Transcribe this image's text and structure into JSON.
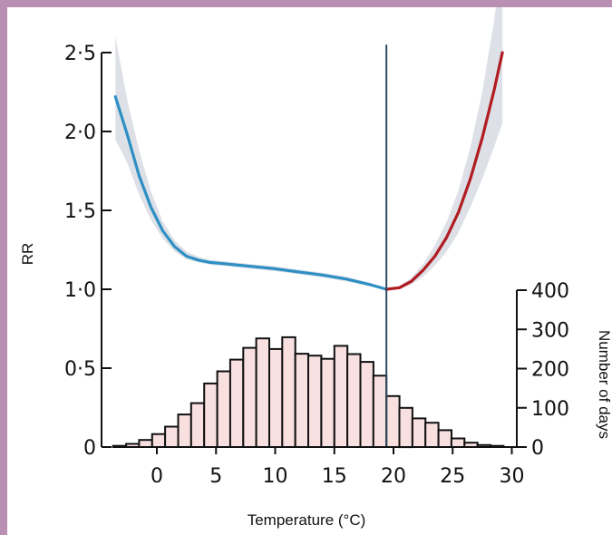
{
  "chart_data": {
    "type": "line",
    "xlabel": "Temperature (°C)",
    "ylabel": "RR",
    "y2label": "Number of days",
    "xlim": [
      -4,
      30.5
    ],
    "ylim": [
      0,
      2.55
    ],
    "y2lim": [
      0,
      400
    ],
    "x_ticks": [
      0,
      5,
      10,
      15,
      20,
      25,
      30
    ],
    "x_tick_labels": [
      "0",
      "5",
      "10",
      "15",
      "20",
      "25",
      "30"
    ],
    "y_ticks": [
      0,
      0.5,
      1.0,
      1.5,
      2.0,
      2.5
    ],
    "y_tick_labels": [
      "0",
      "0·5",
      "1·0",
      "1·5",
      "2·0",
      "2·5"
    ],
    "y2_ticks": [
      0,
      100,
      200,
      300,
      400
    ],
    "y2_tick_labels": [
      "0",
      "100",
      "200",
      "300",
      "400"
    ],
    "reference_temperature": 19.4,
    "series": [
      {
        "color": "#2e8fc4",
        "values": [
          [
            -3.5,
            2.22
          ],
          [
            -2.5,
            1.98
          ],
          [
            -1.5,
            1.72
          ],
          [
            -0.5,
            1.52
          ],
          [
            0.5,
            1.37
          ],
          [
            1.5,
            1.27
          ],
          [
            2.5,
            1.21
          ],
          [
            3.5,
            1.185
          ],
          [
            4.5,
            1.17
          ],
          [
            6,
            1.16
          ],
          [
            8,
            1.145
          ],
          [
            10,
            1.13
          ],
          [
            12,
            1.11
          ],
          [
            14,
            1.09
          ],
          [
            16,
            1.065
          ],
          [
            18,
            1.03
          ],
          [
            19.4,
            1.0
          ]
        ]
      },
      {
        "color": "#b01c22",
        "values": [
          [
            19.4,
            1.0
          ],
          [
            20.5,
            1.01
          ],
          [
            21.5,
            1.05
          ],
          [
            22.5,
            1.12
          ],
          [
            23.5,
            1.21
          ],
          [
            24.5,
            1.33
          ],
          [
            25.5,
            1.49
          ],
          [
            26.5,
            1.7
          ],
          [
            27.5,
            1.96
          ],
          [
            28.5,
            2.26
          ],
          [
            29.2,
            2.5
          ]
        ]
      }
    ],
    "confidence_band": {
      "color": "#dde1e7",
      "values": [
        [
          -3.5,
          1.95,
          2.6
        ],
        [
          -2.5,
          1.8,
          2.2
        ],
        [
          -1.5,
          1.6,
          1.88
        ],
        [
          -0.5,
          1.44,
          1.62
        ],
        [
          0.5,
          1.32,
          1.43
        ],
        [
          1.5,
          1.24,
          1.31
        ],
        [
          2.5,
          1.19,
          1.24
        ],
        [
          3.5,
          1.17,
          1.205
        ],
        [
          4.5,
          1.155,
          1.185
        ],
        [
          6,
          1.145,
          1.175
        ],
        [
          8,
          1.13,
          1.16
        ],
        [
          10,
          1.115,
          1.145
        ],
        [
          12,
          1.095,
          1.125
        ],
        [
          14,
          1.075,
          1.105
        ],
        [
          16,
          1.05,
          1.08
        ],
        [
          18,
          1.02,
          1.04
        ],
        [
          19.4,
          1.0,
          1.0
        ],
        [
          20.5,
          1.0,
          1.02
        ],
        [
          21.5,
          1.03,
          1.07
        ],
        [
          22.5,
          1.08,
          1.16
        ],
        [
          23.5,
          1.15,
          1.28
        ],
        [
          24.5,
          1.24,
          1.43
        ],
        [
          25.5,
          1.36,
          1.63
        ],
        [
          26.5,
          1.52,
          1.9
        ],
        [
          27.5,
          1.7,
          2.25
        ],
        [
          28.5,
          1.9,
          2.7
        ],
        [
          29.2,
          2.05,
          3.1
        ]
      ]
    },
    "histogram": {
      "fill": "#f8dfe0",
      "bin_width": 1.1,
      "bins": [
        {
          "x": -3.7,
          "days": 3
        },
        {
          "x": -2.6,
          "days": 8
        },
        {
          "x": -1.5,
          "days": 18
        },
        {
          "x": -0.4,
          "days": 33
        },
        {
          "x": 0.7,
          "days": 52
        },
        {
          "x": 1.8,
          "days": 83
        },
        {
          "x": 2.9,
          "days": 112
        },
        {
          "x": 4.0,
          "days": 162
        },
        {
          "x": 5.1,
          "days": 193
        },
        {
          "x": 6.2,
          "days": 223
        },
        {
          "x": 7.3,
          "days": 253
        },
        {
          "x": 8.4,
          "days": 277
        },
        {
          "x": 9.5,
          "days": 250
        },
        {
          "x": 10.6,
          "days": 280
        },
        {
          "x": 11.7,
          "days": 238
        },
        {
          "x": 12.8,
          "days": 233
        },
        {
          "x": 13.9,
          "days": 225
        },
        {
          "x": 15.0,
          "days": 258
        },
        {
          "x": 16.1,
          "days": 237
        },
        {
          "x": 17.2,
          "days": 217
        },
        {
          "x": 18.3,
          "days": 182
        },
        {
          "x": 19.4,
          "days": 130
        },
        {
          "x": 20.5,
          "days": 100
        },
        {
          "x": 21.6,
          "days": 73
        },
        {
          "x": 22.7,
          "days": 62
        },
        {
          "x": 23.8,
          "days": 43
        },
        {
          "x": 24.9,
          "days": 22
        },
        {
          "x": 26.0,
          "days": 11
        },
        {
          "x": 27.1,
          "days": 5
        },
        {
          "x": 28.2,
          "days": 3
        }
      ]
    }
  }
}
